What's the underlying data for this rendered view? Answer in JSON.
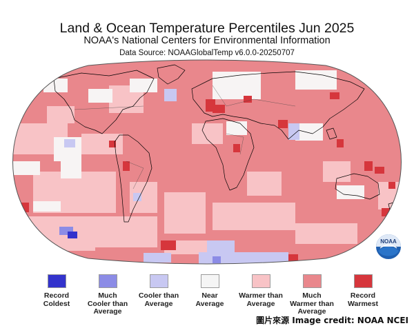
{
  "header": {
    "title": "Land & Ocean Temperature Percentiles Jun 2025",
    "subtitle": "NOAA's National Centers for Environmental Information",
    "source": "Data Source: NOAAGlobalTemp v6.0.0-20250707"
  },
  "legend": [
    {
      "line1": "Record",
      "line2": "Coldest",
      "line3": "",
      "color": "#3333cc"
    },
    {
      "line1": "Much",
      "line2": "Cooler than",
      "line3": "Average",
      "color": "#8c8ce6"
    },
    {
      "line1": "Cooler than",
      "line2": "Average",
      "line3": "",
      "color": "#c8c8f2"
    },
    {
      "line1": "Near",
      "line2": "Average",
      "line3": "",
      "color": "#f5f5f5"
    },
    {
      "line1": "Warmer than",
      "line2": "Average",
      "line3": "",
      "color": "#f8c3c6"
    },
    {
      "line1": "Much",
      "line2": "Warmer than",
      "line3": "Average",
      "color": "#e9878c"
    },
    {
      "line1": "Record",
      "line2": "Warmest",
      "line3": "",
      "color": "#d6363c"
    }
  ],
  "logo": {
    "text": "NOAA"
  },
  "credit": "圖片來源 Image credit: NOAA NCEI"
}
